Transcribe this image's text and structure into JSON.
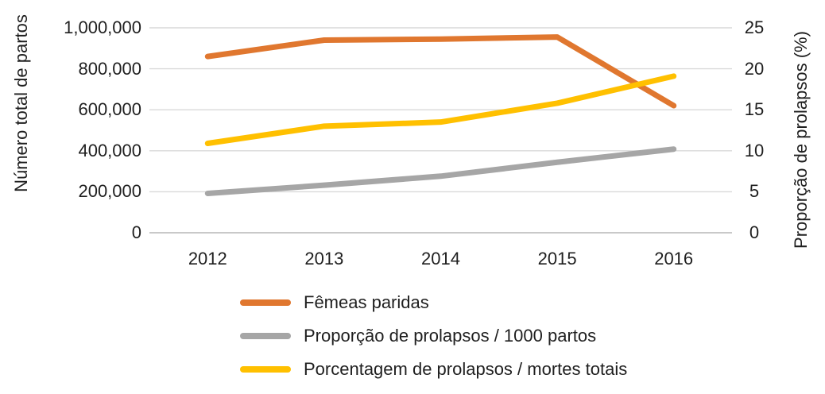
{
  "chart_data": {
    "type": "line",
    "categories": [
      "2012",
      "2013",
      "2014",
      "2015",
      "2016"
    ],
    "series": [
      {
        "name": "Fêmeas paridas",
        "axis": "left",
        "color": "#E0772F",
        "values": [
          860000,
          940000,
          945000,
          955000,
          620000
        ]
      },
      {
        "name": "Proporção de prolapsos / 1000 partos",
        "axis": "right",
        "color": "#A6A6A6",
        "values": [
          4.8,
          5.8,
          6.9,
          8.6,
          10.2
        ]
      },
      {
        "name": "Porcentagem de prolapsos / mortes totais",
        "axis": "right",
        "color": "#FFC000",
        "values": [
          10.9,
          13.0,
          13.5,
          15.8,
          19.1
        ]
      }
    ],
    "ylabel_left": "Número total de partos",
    "ylabel_right": "Proporção de prolapsos (%)",
    "y_left": {
      "min": 0,
      "max": 1000000,
      "ticks": [
        0,
        200000,
        400000,
        600000,
        800000,
        1000000
      ],
      "tick_labels": [
        "0",
        "200,000",
        "400,000",
        "600,000",
        "800,000",
        "1,000,000"
      ]
    },
    "y_right": {
      "min": 0,
      "max": 25,
      "ticks": [
        0,
        5,
        10,
        15,
        20,
        25
      ],
      "tick_labels": [
        "0",
        "5",
        "10",
        "15",
        "20",
        "25"
      ]
    },
    "grid": "horizontal",
    "legend_position": "bottom-left",
    "gridline_color": "#D9D9D9",
    "axisline_color": "#C9C9C9"
  }
}
